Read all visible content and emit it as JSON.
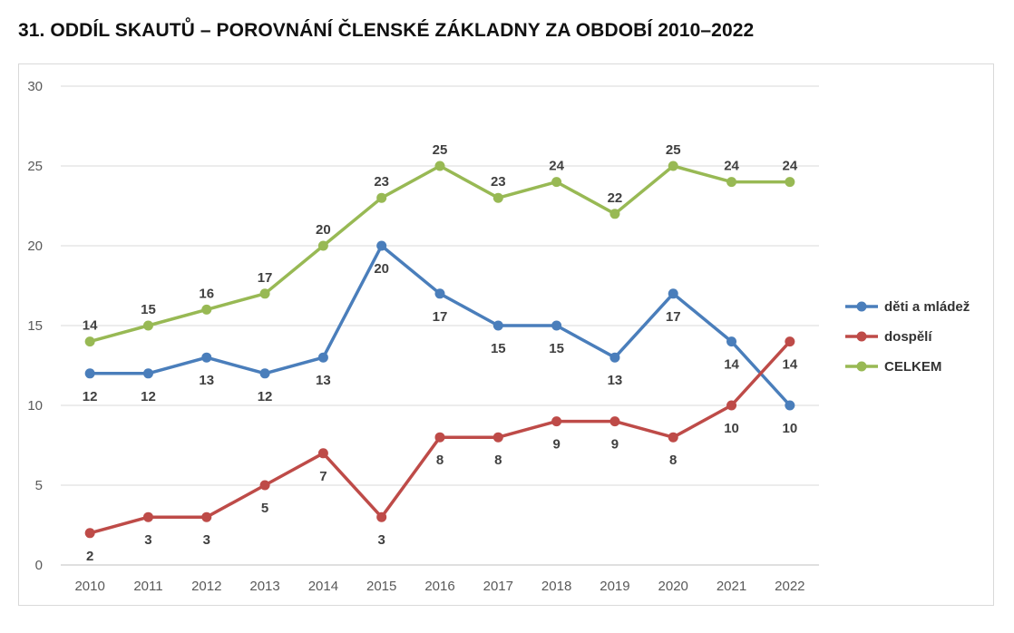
{
  "page": {
    "title": "31. ODDÍL SKAUTŮ – POROVNÁNÍ ČLENSKÉ ZÁKLADNY ZA OBDOBÍ 2010–2022"
  },
  "chart_data": {
    "type": "line",
    "title": "31. ODDÍL SKAUTŮ – POROVNÁNÍ ČLENSKÉ ZÁKLADNY ZA OBDOBÍ 2010–2022",
    "x": [
      "2010",
      "2011",
      "2012",
      "2013",
      "2014",
      "2015",
      "2016",
      "2017",
      "2018",
      "2019",
      "2020",
      "2021",
      "2022"
    ],
    "ylim": [
      0,
      30
    ],
    "yticks": [
      0,
      5,
      10,
      15,
      20,
      25,
      30
    ],
    "grid": true,
    "legend_position": "right",
    "series": [
      {
        "name": "děti a mládež",
        "color": "#4a7ebb",
        "label_position": "below",
        "values": [
          12,
          12,
          13,
          12,
          13,
          20,
          17,
          15,
          15,
          13,
          17,
          14,
          10
        ]
      },
      {
        "name": "dospělí",
        "color": "#be4b48",
        "label_position": "below",
        "values": [
          2,
          3,
          3,
          5,
          7,
          3,
          8,
          8,
          9,
          9,
          8,
          10,
          14
        ]
      },
      {
        "name": "CELKEM",
        "color": "#98b954",
        "label_position": "above",
        "values": [
          14,
          15,
          16,
          17,
          20,
          23,
          25,
          23,
          24,
          22,
          25,
          24,
          24
        ]
      }
    ]
  }
}
